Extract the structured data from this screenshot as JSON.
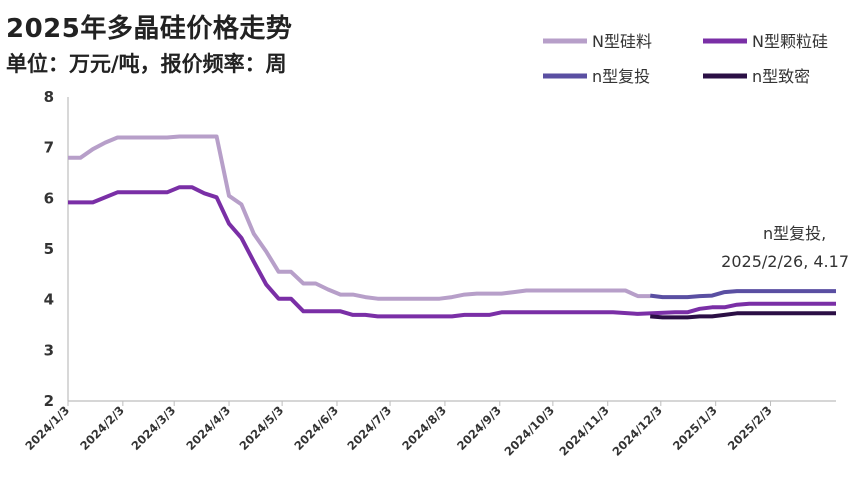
{
  "header": {
    "title": "2025年多晶硅价格走势",
    "subtitle": "单位：万元/吨，报价频率：周"
  },
  "chart_data": {
    "type": "line",
    "title": "2025年多晶硅价格走势",
    "subtitle": "单位：万元/吨，报价频率：周",
    "xlabel": "",
    "ylabel": "",
    "ylim": [
      2,
      8
    ],
    "yticks": [
      "2",
      "3",
      "4",
      "5",
      "6",
      "7",
      "8"
    ],
    "xlim": [
      "2024-01-03",
      "2025-03-12"
    ],
    "xticks": [
      "2024/1/3",
      "2024/2/3",
      "2024/3/3",
      "2024/4/3",
      "2024/5/3",
      "2024/6/3",
      "2024/7/3",
      "2024/8/3",
      "2024/9/3",
      "2024/10/3",
      "2024/11/3",
      "2024/12/3",
      "2025/1/3",
      "2025/2/3"
    ],
    "grid": false,
    "legend_position": "top-right",
    "series": [
      {
        "name": "N型硅料",
        "color": "#b79fc9",
        "points": [
          [
            "2024-01-03",
            6.8
          ],
          [
            "2024-01-10",
            6.8
          ],
          [
            "2024-01-17",
            6.97
          ],
          [
            "2024-01-24",
            7.1
          ],
          [
            "2024-01-31",
            7.2
          ],
          [
            "2024-02-07",
            7.2
          ],
          [
            "2024-02-21",
            7.2
          ],
          [
            "2024-02-28",
            7.2
          ],
          [
            "2024-03-06",
            7.22
          ],
          [
            "2024-03-13",
            7.22
          ],
          [
            "2024-03-20",
            7.22
          ],
          [
            "2024-03-27",
            7.22
          ],
          [
            "2024-04-03",
            6.05
          ],
          [
            "2024-04-10",
            5.88
          ],
          [
            "2024-04-17",
            5.3
          ],
          [
            "2024-04-24",
            4.95
          ],
          [
            "2024-05-01",
            4.55
          ],
          [
            "2024-05-08",
            4.55
          ],
          [
            "2024-05-15",
            4.32
          ],
          [
            "2024-05-22",
            4.32
          ],
          [
            "2024-05-29",
            4.2
          ],
          [
            "2024-06-05",
            4.1
          ],
          [
            "2024-06-12",
            4.1
          ],
          [
            "2024-06-19",
            4.05
          ],
          [
            "2024-06-26",
            4.02
          ],
          [
            "2024-07-03",
            4.02
          ],
          [
            "2024-07-10",
            4.02
          ],
          [
            "2024-07-17",
            4.02
          ],
          [
            "2024-07-24",
            4.02
          ],
          [
            "2024-07-31",
            4.02
          ],
          [
            "2024-08-07",
            4.05
          ],
          [
            "2024-08-14",
            4.1
          ],
          [
            "2024-08-21",
            4.12
          ],
          [
            "2024-08-28",
            4.12
          ],
          [
            "2024-09-04",
            4.12
          ],
          [
            "2024-09-11",
            4.15
          ],
          [
            "2024-09-18",
            4.18
          ],
          [
            "2024-09-25",
            4.18
          ],
          [
            "2024-10-02",
            4.18
          ],
          [
            "2024-10-09",
            4.18
          ],
          [
            "2024-10-16",
            4.18
          ],
          [
            "2024-10-23",
            4.18
          ],
          [
            "2024-10-30",
            4.18
          ],
          [
            "2024-11-06",
            4.18
          ],
          [
            "2024-11-13",
            4.18
          ],
          [
            "2024-11-20",
            4.07
          ],
          [
            "2024-11-27",
            4.07
          ]
        ]
      },
      {
        "name": "N型颗粒硅",
        "color": "#7a2fa6",
        "points": [
          [
            "2024-01-03",
            5.92
          ],
          [
            "2024-01-17",
            5.92
          ],
          [
            "2024-01-31",
            6.12
          ],
          [
            "2024-02-14",
            6.12
          ],
          [
            "2024-02-28",
            6.12
          ],
          [
            "2024-03-06",
            6.22
          ],
          [
            "2024-03-13",
            6.22
          ],
          [
            "2024-03-20",
            6.1
          ],
          [
            "2024-03-27",
            6.02
          ],
          [
            "2024-04-03",
            5.5
          ],
          [
            "2024-04-10",
            5.22
          ],
          [
            "2024-04-17",
            4.75
          ],
          [
            "2024-04-24",
            4.3
          ],
          [
            "2024-05-01",
            4.02
          ],
          [
            "2024-05-08",
            4.02
          ],
          [
            "2024-05-15",
            3.77
          ],
          [
            "2024-05-22",
            3.77
          ],
          [
            "2024-06-05",
            3.77
          ],
          [
            "2024-06-12",
            3.7
          ],
          [
            "2024-06-19",
            3.7
          ],
          [
            "2024-06-26",
            3.67
          ],
          [
            "2024-07-10",
            3.67
          ],
          [
            "2024-08-07",
            3.67
          ],
          [
            "2024-08-14",
            3.7
          ],
          [
            "2024-08-21",
            3.7
          ],
          [
            "2024-08-28",
            3.7
          ],
          [
            "2024-09-04",
            3.75
          ],
          [
            "2024-10-02",
            3.75
          ],
          [
            "2024-11-06",
            3.75
          ],
          [
            "2024-11-20",
            3.72
          ],
          [
            "2024-12-11",
            3.75
          ],
          [
            "2024-12-18",
            3.75
          ],
          [
            "2024-12-25",
            3.82
          ],
          [
            "2025-01-01",
            3.85
          ],
          [
            "2025-01-08",
            3.85
          ],
          [
            "2025-01-15",
            3.9
          ],
          [
            "2025-01-22",
            3.92
          ],
          [
            "2025-02-05",
            3.92
          ],
          [
            "2025-02-26",
            3.92
          ],
          [
            "2025-03-12",
            3.92
          ]
        ]
      },
      {
        "name": "n型复投",
        "color": "#5a4fa2",
        "points": [
          [
            "2024-11-27",
            4.08
          ],
          [
            "2024-12-04",
            4.05
          ],
          [
            "2024-12-11",
            4.05
          ],
          [
            "2024-12-18",
            4.05
          ],
          [
            "2024-12-25",
            4.07
          ],
          [
            "2025-01-01",
            4.08
          ],
          [
            "2025-01-08",
            4.15
          ],
          [
            "2025-01-15",
            4.17
          ],
          [
            "2025-01-22",
            4.17
          ],
          [
            "2025-02-05",
            4.17
          ],
          [
            "2025-02-26",
            4.17
          ],
          [
            "2025-03-12",
            4.17
          ]
        ]
      },
      {
        "name": "n型致密",
        "color": "#2b0f45",
        "points": [
          [
            "2024-11-27",
            3.67
          ],
          [
            "2024-12-04",
            3.65
          ],
          [
            "2024-12-11",
            3.65
          ],
          [
            "2024-12-18",
            3.65
          ],
          [
            "2024-12-25",
            3.67
          ],
          [
            "2025-01-01",
            3.67
          ],
          [
            "2025-01-08",
            3.7
          ],
          [
            "2025-01-15",
            3.73
          ],
          [
            "2025-01-22",
            3.73
          ],
          [
            "2025-02-05",
            3.73
          ],
          [
            "2025-02-26",
            3.73
          ],
          [
            "2025-03-12",
            3.73
          ]
        ]
      }
    ],
    "annotations": [
      {
        "line1": "n型复投,",
        "line2": "2025/2/26, 4.17",
        "x": "2025-02-26",
        "y": 4.17
      }
    ]
  }
}
